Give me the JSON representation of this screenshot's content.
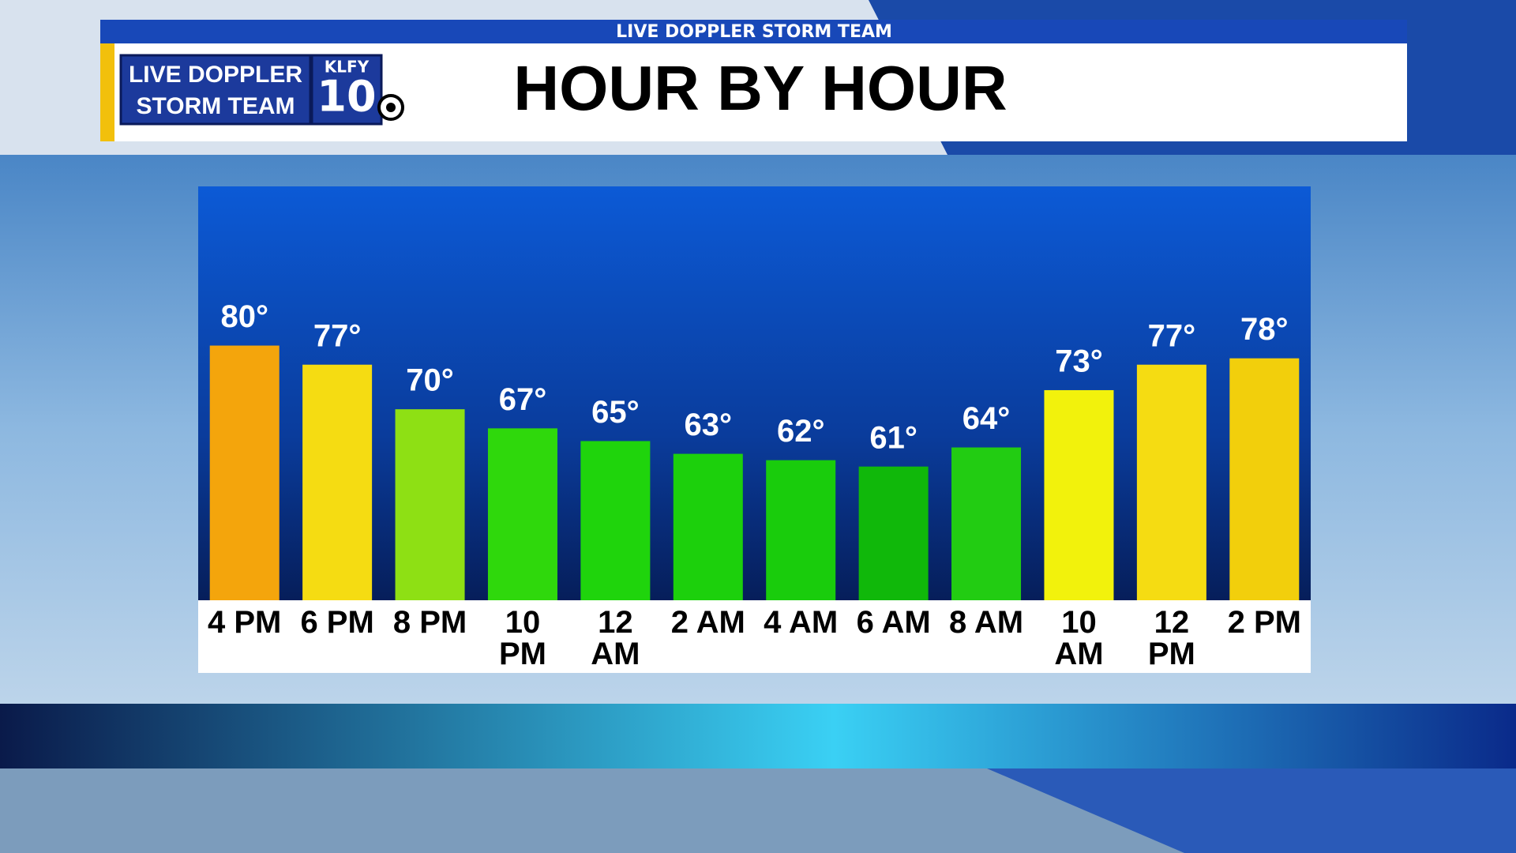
{
  "header": {
    "banner": "LIVE DOPPLER STORM TEAM",
    "title": "HOUR BY HOUR",
    "logo_line1": "LIVE DOPPLER",
    "logo_line2": "STORM TEAM",
    "logo_station": "KLFY",
    "logo_channel": "10"
  },
  "chart_data": {
    "type": "bar",
    "categories": [
      "4 PM",
      "6 PM",
      "8 PM",
      "10 PM",
      "12 AM",
      "2 AM",
      "4 AM",
      "6 AM",
      "8 AM",
      "10 AM",
      "12 PM",
      "2 PM"
    ],
    "values": [
      80,
      77,
      70,
      67,
      65,
      63,
      62,
      61,
      64,
      73,
      77,
      78
    ],
    "value_labels": [
      "80°",
      "77°",
      "70°",
      "67°",
      "65°",
      "63°",
      "62°",
      "61°",
      "64°",
      "73°",
      "77°",
      "78°"
    ],
    "colors": [
      "#f4a50c",
      "#f5dc12",
      "#8ee014",
      "#2fd80c",
      "#1fd40c",
      "#1cd00c",
      "#19cc0c",
      "#10b80a",
      "#22cc12",
      "#f2f20c",
      "#f5dc12",
      "#f2cf0c"
    ],
    "ylim": [
      40,
      105
    ]
  }
}
